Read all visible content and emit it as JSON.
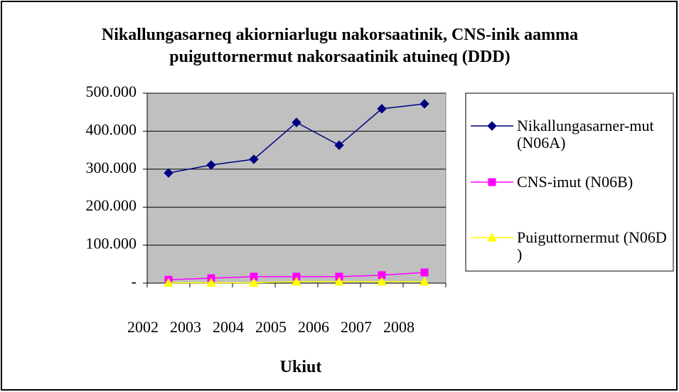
{
  "chart_data": {
    "type": "line",
    "title": "Nikallungasarneq akiorniarlugu nakorsaatinik, CNS-inik aamma puiguttornermut  nakorsaatinik atuineq (DDD)",
    "x_label": "Ukiut",
    "categories": [
      "2002",
      "2003",
      "2004",
      "2005",
      "2006",
      "2007",
      "2008"
    ],
    "series": [
      {
        "name": "Nikallungasarner-mut (N06A)",
        "color": "#000080",
        "marker": "diamond",
        "values": [
          290000,
          311000,
          326000,
          423000,
          363000,
          459000,
          472000
        ]
      },
      {
        "name": "CNS-imut (N06B)",
        "color": "#ff00ff",
        "marker": "square",
        "values": [
          9000,
          13000,
          17000,
          17000,
          17000,
          21000,
          28000
        ]
      },
      {
        "name": "Puiguttornermut (N06D )",
        "color": "#ffff00",
        "marker": "triangle",
        "values": [
          1000,
          1000,
          1000,
          4000,
          4000,
          4000,
          4000
        ]
      }
    ],
    "ylim": [
      0,
      500000
    ],
    "yticks": [
      {
        "value": 0,
        "label": "-"
      },
      {
        "value": 100000,
        "label": "100.000"
      },
      {
        "value": 200000,
        "label": "200.000"
      },
      {
        "value": 300000,
        "label": "300.000"
      },
      {
        "value": 400000,
        "label": "400.000"
      },
      {
        "value": 500000,
        "label": "500.000"
      }
    ],
    "grid": true,
    "legend": "right",
    "plot_background": "#c0c0c0"
  }
}
